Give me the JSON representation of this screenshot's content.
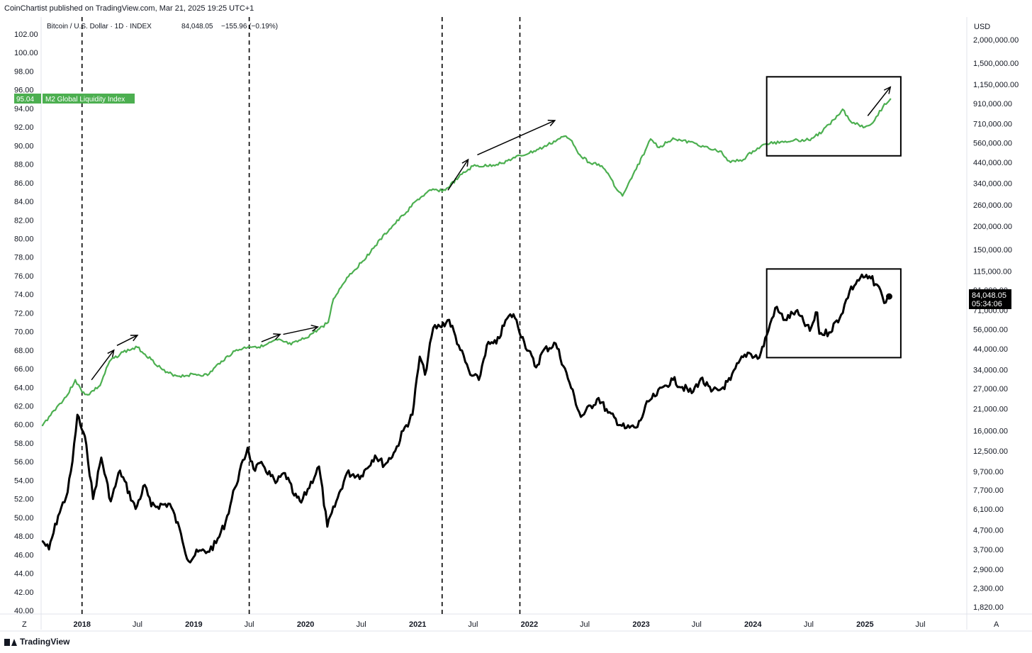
{
  "publisher_note": "CoinChartist published on TradingView.com, Mar 21, 2025 19:25 UTC+1",
  "footer": {
    "brand": "TradingView"
  },
  "legend": {
    "symbol": "Bitcoin / U.S. Dollar · 1D · INDEX",
    "price": "84,048.05",
    "change": "−155.96 (−0.19%)",
    "m2_value": "95.04",
    "m2_name": "M2 Global Liquidity Index",
    "btc_price_tag": "84,048.05",
    "btc_countdown": "05:34:06"
  },
  "axis_controls": {
    "left": "Z",
    "right": "A"
  },
  "colors": {
    "m2": "#4caf50",
    "btc": "#000000",
    "text": "#131722",
    "grid": "#e0e3eb"
  },
  "chart_data": {
    "type": "line",
    "left_axis": {
      "unit": "",
      "range": [
        40,
        102
      ],
      "ticks": [
        "102.00",
        "100.00",
        "98.00",
        "96.00",
        "94.00",
        "92.00",
        "90.00",
        "88.00",
        "86.00",
        "84.00",
        "82.00",
        "80.00",
        "78.00",
        "76.00",
        "74.00",
        "72.00",
        "70.00",
        "68.00",
        "66.00",
        "64.00",
        "62.00",
        "60.00",
        "58.00",
        "56.00",
        "54.00",
        "52.00",
        "50.00",
        "48.00",
        "46.00",
        "44.00",
        "42.00",
        "40.00"
      ]
    },
    "right_axis": {
      "unit": "USD",
      "scale": "log",
      "ticks": [
        {
          "value": 2000000,
          "label": "2,000,000.00"
        },
        {
          "value": 1500000,
          "label": "1,500,000.00"
        },
        {
          "value": 1150000,
          "label": "1,150,000.00"
        },
        {
          "value": 910000,
          "label": "910,000.00"
        },
        {
          "value": 710000,
          "label": "710,000.00"
        },
        {
          "value": 560000,
          "label": "560,000.00"
        },
        {
          "value": 440000,
          "label": "440,000.00"
        },
        {
          "value": 340000,
          "label": "340,000.00"
        },
        {
          "value": 260000,
          "label": "260,000.00"
        },
        {
          "value": 200000,
          "label": "200,000.00"
        },
        {
          "value": 150000,
          "label": "150,000.00"
        },
        {
          "value": 115000,
          "label": "115,000.00"
        },
        {
          "value": 91000,
          "label": "91,000.00"
        },
        {
          "value": 71000,
          "label": "71,000.00"
        },
        {
          "value": 56000,
          "label": "56,000.00"
        },
        {
          "value": 44000,
          "label": "44,000.00"
        },
        {
          "value": 34000,
          "label": "34,000.00"
        },
        {
          "value": 27000,
          "label": "27,000.00"
        },
        {
          "value": 21000,
          "label": "21,000.00"
        },
        {
          "value": 16000,
          "label": "16,000.00"
        },
        {
          "value": 12500,
          "label": "12,500.00"
        },
        {
          "value": 9700,
          "label": "9,700.00"
        },
        {
          "value": 7700,
          "label": "7,700.00"
        },
        {
          "value": 6100,
          "label": "6,100.00"
        },
        {
          "value": 4700,
          "label": "4,700.00"
        },
        {
          "value": 3700,
          "label": "3,700.00"
        },
        {
          "value": 2900,
          "label": "2,900.00"
        },
        {
          "value": 2300,
          "label": "2,300.00"
        },
        {
          "value": 1820,
          "label": "1,820.00"
        }
      ]
    },
    "x_axis": {
      "range": [
        "2017-08-25",
        "2025-08-15"
      ],
      "ticks": [
        {
          "date": "2018-01-01",
          "label": "2018",
          "year": true
        },
        {
          "date": "2018-07-01",
          "label": "Jul",
          "year": false
        },
        {
          "date": "2019-01-01",
          "label": "2019",
          "year": true
        },
        {
          "date": "2019-07-01",
          "label": "Jul",
          "year": false
        },
        {
          "date": "2020-01-01",
          "label": "2020",
          "year": true
        },
        {
          "date": "2020-07-01",
          "label": "Jul",
          "year": false
        },
        {
          "date": "2021-01-01",
          "label": "2021",
          "year": true
        },
        {
          "date": "2021-07-01",
          "label": "Jul",
          "year": false
        },
        {
          "date": "2022-01-01",
          "label": "2022",
          "year": true
        },
        {
          "date": "2022-07-01",
          "label": "Jul",
          "year": false
        },
        {
          "date": "2023-01-01",
          "label": "2023",
          "year": true
        },
        {
          "date": "2023-07-01",
          "label": "Jul",
          "year": false
        },
        {
          "date": "2024-01-01",
          "label": "2024",
          "year": true
        },
        {
          "date": "2024-07-01",
          "label": "Jul",
          "year": false
        },
        {
          "date": "2025-01-01",
          "label": "2025",
          "year": true
        },
        {
          "date": "2025-07-01",
          "label": "Jul",
          "year": false
        }
      ]
    },
    "series": [
      {
        "name": "M2 Global Liquidity Index",
        "axis": "left",
        "points": [
          [
            "2017-08-25",
            59.9
          ],
          [
            "2017-10-01",
            61.5
          ],
          [
            "2017-11-15",
            63.2
          ],
          [
            "2017-12-10",
            64.8
          ],
          [
            "2018-01-01",
            63.5
          ],
          [
            "2018-01-20",
            63.2
          ],
          [
            "2018-03-01",
            64.2
          ],
          [
            "2018-04-01",
            66.8
          ],
          [
            "2018-05-15",
            67.8
          ],
          [
            "2018-07-01",
            68.3
          ],
          [
            "2018-08-15",
            67.0
          ],
          [
            "2018-10-01",
            65.6
          ],
          [
            "2018-11-15",
            65.2
          ],
          [
            "2019-01-01",
            65.4
          ],
          [
            "2019-02-15",
            65.3
          ],
          [
            "2019-04-01",
            66.8
          ],
          [
            "2019-05-15",
            67.9
          ],
          [
            "2019-07-01",
            68.4
          ],
          [
            "2019-08-15",
            68.4
          ],
          [
            "2019-10-01",
            69.1
          ],
          [
            "2019-11-15",
            68.6
          ],
          [
            "2020-01-01",
            69.3
          ],
          [
            "2020-02-15",
            70.3
          ],
          [
            "2020-03-15",
            71.0
          ],
          [
            "2020-04-01",
            73.5
          ],
          [
            "2020-05-15",
            75.8
          ],
          [
            "2020-07-01",
            77.4
          ],
          [
            "2020-08-15",
            79.2
          ],
          [
            "2020-10-01",
            81.0
          ],
          [
            "2020-11-15",
            82.5
          ],
          [
            "2021-01-01",
            84.2
          ],
          [
            "2021-02-15",
            85.2
          ],
          [
            "2021-04-01",
            85.2
          ],
          [
            "2021-05-15",
            86.6
          ],
          [
            "2021-07-01",
            87.8
          ],
          [
            "2021-08-15",
            87.8
          ],
          [
            "2021-10-01",
            88.1
          ],
          [
            "2021-11-15",
            88.7
          ],
          [
            "2022-01-01",
            89.2
          ],
          [
            "2022-02-15",
            89.8
          ],
          [
            "2022-04-01",
            90.6
          ],
          [
            "2022-04-25",
            91.0
          ],
          [
            "2022-05-20",
            90.5
          ],
          [
            "2022-06-15",
            89.0
          ],
          [
            "2022-07-15",
            88.2
          ],
          [
            "2022-08-15",
            88.0
          ],
          [
            "2022-09-15",
            87.0
          ],
          [
            "2022-10-15",
            85.2
          ],
          [
            "2022-11-01",
            84.6
          ],
          [
            "2022-12-01",
            86.5
          ],
          [
            "2023-01-15",
            89.5
          ],
          [
            "2023-02-01",
            90.7
          ],
          [
            "2023-03-01",
            89.8
          ],
          [
            "2023-04-15",
            90.8
          ],
          [
            "2023-05-15",
            90.5
          ],
          [
            "2023-07-01",
            90.2
          ],
          [
            "2023-08-15",
            89.6
          ],
          [
            "2023-09-15",
            89.4
          ],
          [
            "2023-10-20",
            88.2
          ],
          [
            "2023-12-01",
            88.5
          ],
          [
            "2024-01-01",
            89.4
          ],
          [
            "2024-02-15",
            90.2
          ],
          [
            "2024-04-01",
            90.4
          ],
          [
            "2024-05-15",
            90.6
          ],
          [
            "2024-07-01",
            90.6
          ],
          [
            "2024-08-15",
            91.5
          ],
          [
            "2024-10-01",
            93.2
          ],
          [
            "2024-10-20",
            93.9
          ],
          [
            "2024-11-15",
            92.6
          ],
          [
            "2025-01-01",
            92.0
          ],
          [
            "2025-02-01",
            92.7
          ],
          [
            "2025-03-01",
            94.2
          ],
          [
            "2025-03-25",
            95.0
          ]
        ]
      },
      {
        "name": "Bitcoin / U.S. Dollar",
        "axis": "right",
        "points": [
          [
            "2017-08-25",
            4100
          ],
          [
            "2017-09-15",
            3700
          ],
          [
            "2017-10-15",
            5600
          ],
          [
            "2017-11-15",
            7500
          ],
          [
            "2017-12-01",
            11000
          ],
          [
            "2017-12-17",
            19500
          ],
          [
            "2018-01-15",
            13500
          ],
          [
            "2018-02-06",
            6900
          ],
          [
            "2018-03-05",
            11500
          ],
          [
            "2018-04-05",
            6700
          ],
          [
            "2018-05-05",
            9800
          ],
          [
            "2018-06-25",
            6100
          ],
          [
            "2018-07-25",
            8200
          ],
          [
            "2018-08-15",
            6300
          ],
          [
            "2018-10-15",
            6500
          ],
          [
            "2018-11-20",
            4500
          ],
          [
            "2018-12-15",
            3200
          ],
          [
            "2019-01-15",
            3600
          ],
          [
            "2019-02-15",
            3600
          ],
          [
            "2019-03-15",
            4000
          ],
          [
            "2019-04-15",
            5200
          ],
          [
            "2019-05-15",
            7900
          ],
          [
            "2019-06-26",
            13000
          ],
          [
            "2019-07-15",
            10000
          ],
          [
            "2019-08-15",
            10500
          ],
          [
            "2019-09-25",
            8400
          ],
          [
            "2019-10-26",
            9500
          ],
          [
            "2019-11-25",
            7200
          ],
          [
            "2019-12-18",
            6600
          ],
          [
            "2020-02-14",
            10300
          ],
          [
            "2020-03-12",
            4900
          ],
          [
            "2020-04-15",
            7000
          ],
          [
            "2020-05-15",
            9500
          ],
          [
            "2020-07-01",
            9200
          ],
          [
            "2020-08-15",
            11800
          ],
          [
            "2020-09-15",
            10500
          ],
          [
            "2020-10-20",
            12500
          ],
          [
            "2020-11-15",
            16000
          ],
          [
            "2020-12-15",
            19500
          ],
          [
            "2021-01-08",
            40000
          ],
          [
            "2021-01-25",
            32000
          ],
          [
            "2021-02-21",
            57000
          ],
          [
            "2021-03-15",
            58000
          ],
          [
            "2021-04-14",
            63000
          ],
          [
            "2021-05-15",
            46000
          ],
          [
            "2021-06-22",
            32000
          ],
          [
            "2021-07-20",
            30000
          ],
          [
            "2021-08-15",
            46000
          ],
          [
            "2021-09-15",
            47000
          ],
          [
            "2021-10-20",
            64000
          ],
          [
            "2021-11-10",
            67500
          ],
          [
            "2021-12-15",
            48000
          ],
          [
            "2022-01-23",
            35000
          ],
          [
            "2022-02-15",
            43000
          ],
          [
            "2022-03-28",
            47000
          ],
          [
            "2022-05-12",
            29000
          ],
          [
            "2022-06-18",
            19000
          ],
          [
            "2022-08-15",
            24000
          ],
          [
            "2022-09-15",
            20000
          ],
          [
            "2022-11-09",
            16500
          ],
          [
            "2022-12-20",
            16800
          ],
          [
            "2023-01-25",
            23000
          ],
          [
            "2023-02-15",
            24500
          ],
          [
            "2023-03-20",
            28000
          ],
          [
            "2023-04-15",
            30000
          ],
          [
            "2023-06-15",
            25500
          ],
          [
            "2023-07-15",
            30500
          ],
          [
            "2023-08-18",
            26000
          ],
          [
            "2023-09-15",
            26500
          ],
          [
            "2023-10-20",
            30000
          ],
          [
            "2023-11-15",
            37000
          ],
          [
            "2023-12-15",
            42000
          ],
          [
            "2024-01-22",
            39500
          ],
          [
            "2024-02-15",
            52000
          ],
          [
            "2024-03-14",
            73000
          ],
          [
            "2024-04-15",
            63000
          ],
          [
            "2024-05-20",
            70000
          ],
          [
            "2024-07-05",
            55000
          ],
          [
            "2024-07-29",
            69000
          ],
          [
            "2024-08-05",
            53000
          ],
          [
            "2024-09-06",
            54000
          ],
          [
            "2024-10-15",
            67000
          ],
          [
            "2024-11-12",
            90000
          ],
          [
            "2024-12-17",
            106000
          ],
          [
            "2025-01-20",
            105000
          ],
          [
            "2025-02-10",
            97000
          ],
          [
            "2025-02-27",
            84000
          ],
          [
            "2025-03-10",
            78000
          ],
          [
            "2025-03-21",
            84048
          ]
        ]
      }
    ],
    "annotations": {
      "vertical_dashed_lines": [
        "2018-01-01",
        "2019-07-01",
        "2021-03-22",
        "2021-12-01"
      ],
      "boxes": [
        {
          "series": "M2 Global Liquidity Index",
          "axis": "left",
          "x0": "2024-02-15",
          "x1": "2025-04-28",
          "y0": 88.9,
          "y1": 97.4
        },
        {
          "series": "Bitcoin / U.S. Dollar",
          "axis": "right",
          "x0": "2024-02-15",
          "x1": "2025-04-28",
          "y0": 39500,
          "y1": 118000
        }
      ],
      "arrows": [
        {
          "axis": "left",
          "from": [
            "2018-02-01",
            64.8
          ],
          "to": [
            "2018-04-15",
            68.0
          ]
        },
        {
          "axis": "left",
          "from": [
            "2018-04-25",
            68.5
          ],
          "to": [
            "2018-07-01",
            69.6
          ]
        },
        {
          "axis": "left",
          "from": [
            "2019-08-10",
            68.9
          ],
          "to": [
            "2019-10-10",
            69.7
          ]
        },
        {
          "axis": "left",
          "from": [
            "2019-10-20",
            69.7
          ],
          "to": [
            "2020-02-10",
            70.5
          ]
        },
        {
          "axis": "left",
          "from": [
            "2021-04-10",
            85.2
          ],
          "to": [
            "2021-06-15",
            88.5
          ]
        },
        {
          "axis": "left",
          "from": [
            "2021-07-15",
            89.0
          ],
          "to": [
            "2022-03-25",
            92.7
          ]
        },
        {
          "axis": "left",
          "from": [
            "2025-01-10",
            93.2
          ],
          "to": [
            "2025-03-25",
            96.3
          ]
        }
      ]
    }
  }
}
